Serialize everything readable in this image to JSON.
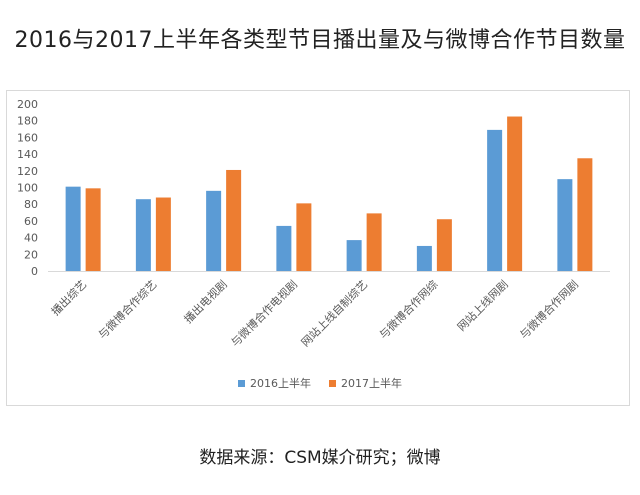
{
  "title": "2016与2017上半年各类型节目播出量及与微博合作节目数量",
  "source": "数据来源：CSM媒介研究；微博",
  "chart_data": {
    "type": "bar",
    "categories": [
      "播出综艺",
      "与微博合作综艺",
      "播出电视剧",
      "与微博合作电视剧",
      "网站上线自制综艺",
      "与微博合作网综",
      "网站上线网剧",
      "与微博合作网剧"
    ],
    "series": [
      {
        "name": "2016上半年",
        "values": [
          101,
          86,
          96,
          54,
          37,
          30,
          169,
          110
        ],
        "color": "#5b9bd5"
      },
      {
        "name": "2017上半年",
        "values": [
          99,
          88,
          121,
          81,
          69,
          62,
          185,
          135
        ],
        "color": "#ed7d31"
      }
    ],
    "yticks": [
      0,
      20,
      40,
      60,
      80,
      100,
      120,
      140,
      160,
      180,
      200
    ],
    "ylim": [
      0,
      200
    ],
    "grid": false,
    "legend": "bottom"
  }
}
